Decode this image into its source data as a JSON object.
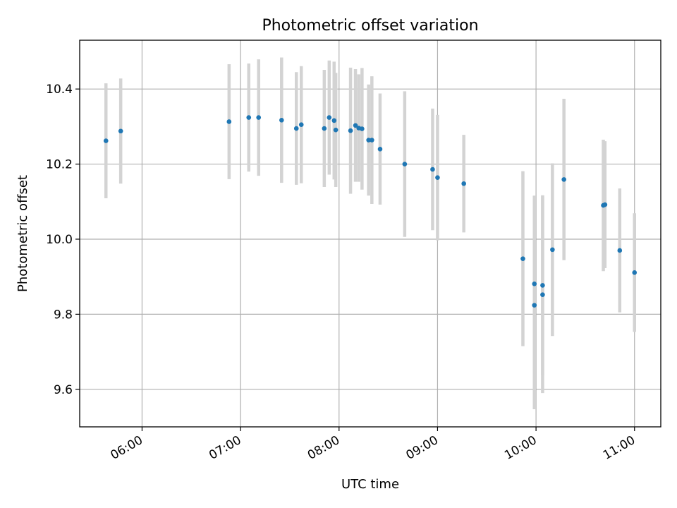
{
  "chart_data": {
    "type": "scatter",
    "title": "Photometric offset variation",
    "xlabel": "UTC time",
    "ylabel": "Photometric offset",
    "xlim": [
      "05:22",
      "11:16"
    ],
    "ylim": [
      9.5,
      10.53
    ],
    "x_ticks": [
      "06:00",
      "07:00",
      "08:00",
      "09:00",
      "10:00",
      "11:00"
    ],
    "y_ticks": [
      9.6,
      9.8,
      10.0,
      10.2,
      10.4
    ],
    "grid": true,
    "colors": {
      "point": "#1f77b4",
      "errorbar": "#d3d3d3"
    },
    "points": [
      {
        "x": "05:38",
        "y": 10.262,
        "err": 0.153
      },
      {
        "x": "05:47",
        "y": 10.288,
        "err": 0.14
      },
      {
        "x": "06:53",
        "y": 10.313,
        "err": 0.153
      },
      {
        "x": "07:05",
        "y": 10.324,
        "err": 0.144
      },
      {
        "x": "07:11",
        "y": 10.324,
        "err": 0.155
      },
      {
        "x": "07:25",
        "y": 10.317,
        "err": 0.167
      },
      {
        "x": "07:34",
        "y": 10.295,
        "err": 0.15
      },
      {
        "x": "07:37",
        "y": 10.305,
        "err": 0.156
      },
      {
        "x": "07:51",
        "y": 10.295,
        "err": 0.156
      },
      {
        "x": "07:54",
        "y": 10.324,
        "err": 0.152
      },
      {
        "x": "07:57",
        "y": 10.316,
        "err": 0.157
      },
      {
        "x": "07:58",
        "y": 10.291,
        "err": 0.152
      },
      {
        "x": "08:07",
        "y": 10.289,
        "err": 0.168
      },
      {
        "x": "08:10",
        "y": 10.303,
        "err": 0.15
      },
      {
        "x": "08:12",
        "y": 10.296,
        "err": 0.143
      },
      {
        "x": "08:14",
        "y": 10.294,
        "err": 0.162
      },
      {
        "x": "08:18",
        "y": 10.264,
        "err": 0.148
      },
      {
        "x": "08:20",
        "y": 10.264,
        "err": 0.17
      },
      {
        "x": "08:25",
        "y": 10.24,
        "err": 0.148
      },
      {
        "x": "08:40",
        "y": 10.2,
        "err": 0.194
      },
      {
        "x": "08:57",
        "y": 10.186,
        "err": 0.162
      },
      {
        "x": "09:00",
        "y": 10.164,
        "err": 0.167
      },
      {
        "x": "09:16",
        "y": 10.148,
        "err": 0.13
      },
      {
        "x": "09:52",
        "y": 9.948,
        "err": 0.233
      },
      {
        "x": "09:59",
        "y": 9.824,
        "err": 0.277
      },
      {
        "x": "09:59",
        "y": 9.881,
        "err": 0.235
      },
      {
        "x": "10:04",
        "y": 9.852,
        "err": 0.262
      },
      {
        "x": "10:04",
        "y": 9.877,
        "err": 0.24
      },
      {
        "x": "10:10",
        "y": 9.972,
        "err": 0.23
      },
      {
        "x": "10:17",
        "y": 10.159,
        "err": 0.215
      },
      {
        "x": "10:41",
        "y": 10.09,
        "err": 0.175
      },
      {
        "x": "10:42",
        "y": 10.092,
        "err": 0.169
      },
      {
        "x": "10:51",
        "y": 9.97,
        "err": 0.165
      },
      {
        "x": "11:00",
        "y": 9.911,
        "err": 0.158
      }
    ]
  }
}
